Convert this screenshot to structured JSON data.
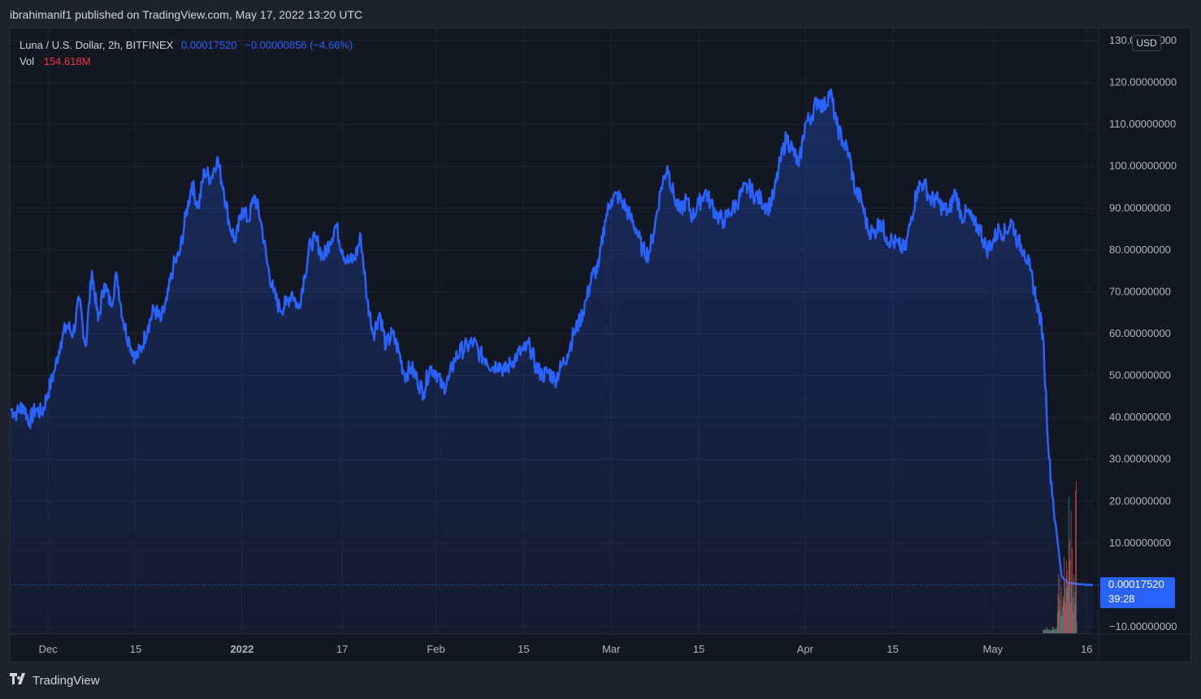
{
  "header": {
    "published_text": "ibrahimanif1 published on TradingView.com, May 17, 2022 13:20 UTC"
  },
  "legend": {
    "symbol": "Luna / U.S. Dollar, 2h, BITFINEX",
    "last": "0.00017520",
    "change": "−0.00000856 (−4.66%)",
    "vol_label": "Vol",
    "vol_value": "154.618M"
  },
  "currency_button": "USD",
  "price_tag": {
    "price": "0.00017520",
    "countdown": "39:28"
  },
  "footer": {
    "brand": "TradingView"
  },
  "colors": {
    "line": "#2962ff",
    "background": "#131722",
    "up": "#26a69a",
    "down": "#ef5350"
  },
  "chart_data": {
    "type": "area",
    "title": "Luna / U.S. Dollar, 2h, BITFINEX",
    "ylim": [
      -10,
      130
    ],
    "y_ticks": [
      {
        "v": 130,
        "label": "130.00000000"
      },
      {
        "v": 120,
        "label": "120.00000000"
      },
      {
        "v": 110,
        "label": "110.00000000"
      },
      {
        "v": 100,
        "label": "100.00000000"
      },
      {
        "v": 90,
        "label": "90.00000000"
      },
      {
        "v": 80,
        "label": "80.00000000"
      },
      {
        "v": 70,
        "label": "70.00000000"
      },
      {
        "v": 60,
        "label": "60.00000000"
      },
      {
        "v": 50,
        "label": "50.00000000"
      },
      {
        "v": 40,
        "label": "40.00000000"
      },
      {
        "v": 30,
        "label": "30.00000000"
      },
      {
        "v": 20,
        "label": "20.00000000"
      },
      {
        "v": 10,
        "label": "10.00000000"
      },
      {
        "v": -10,
        "label": "−10.00000000"
      }
    ],
    "x_start": "2021-11-25",
    "x_end": "2022-05-17",
    "x_ticks": [
      {
        "date": "2021-12-01",
        "label": "Dec",
        "bold": false
      },
      {
        "date": "2021-12-15",
        "label": "15",
        "bold": false
      },
      {
        "date": "2022-01-01",
        "label": "2022",
        "bold": true
      },
      {
        "date": "2022-01-17",
        "label": "17",
        "bold": false
      },
      {
        "date": "2022-02-01",
        "label": "Feb",
        "bold": false
      },
      {
        "date": "2022-02-15",
        "label": "15",
        "bold": false
      },
      {
        "date": "2022-03-01",
        "label": "Mar",
        "bold": false
      },
      {
        "date": "2022-03-15",
        "label": "15",
        "bold": false
      },
      {
        "date": "2022-04-01",
        "label": "Apr",
        "bold": false
      },
      {
        "date": "2022-04-15",
        "label": "15",
        "bold": false
      },
      {
        "date": "2022-05-01",
        "label": "May",
        "bold": false
      },
      {
        "date": "2022-05-16",
        "label": "16",
        "bold": false
      }
    ],
    "series": [
      {
        "name": "Luna / U.S. Dollar",
        "points": [
          [
            "2021-11-25",
            42
          ],
          [
            "2021-11-26",
            41
          ],
          [
            "2021-11-27",
            43
          ],
          [
            "2021-11-28",
            39
          ],
          [
            "2021-11-29",
            42
          ],
          [
            "2021-11-30",
            41
          ],
          [
            "2021-12-01",
            46
          ],
          [
            "2021-12-02",
            51
          ],
          [
            "2021-12-03",
            58
          ],
          [
            "2021-12-04",
            62
          ],
          [
            "2021-12-05",
            60
          ],
          [
            "2021-12-06",
            68
          ],
          [
            "2021-12-07",
            57
          ],
          [
            "2021-12-08",
            75
          ],
          [
            "2021-12-09",
            63
          ],
          [
            "2021-12-10",
            72
          ],
          [
            "2021-12-11",
            67
          ],
          [
            "2021-12-12",
            74
          ],
          [
            "2021-12-13",
            63
          ],
          [
            "2021-12-14",
            58
          ],
          [
            "2021-12-15",
            54
          ],
          [
            "2021-12-16",
            57
          ],
          [
            "2021-12-17",
            62
          ],
          [
            "2021-12-18",
            66
          ],
          [
            "2021-12-19",
            63
          ],
          [
            "2021-12-20",
            68
          ],
          [
            "2021-12-21",
            76
          ],
          [
            "2021-12-22",
            79
          ],
          [
            "2021-12-23",
            88
          ],
          [
            "2021-12-24",
            96
          ],
          [
            "2021-12-25",
            90
          ],
          [
            "2021-12-26",
            99
          ],
          [
            "2021-12-27",
            97
          ],
          [
            "2021-12-28",
            102
          ],
          [
            "2021-12-29",
            95
          ],
          [
            "2021-12-30",
            86
          ],
          [
            "2021-12-31",
            82
          ],
          [
            "2022-01-01",
            90
          ],
          [
            "2022-01-02",
            87
          ],
          [
            "2022-01-03",
            93
          ],
          [
            "2022-01-04",
            87
          ],
          [
            "2022-01-05",
            77
          ],
          [
            "2022-01-06",
            70
          ],
          [
            "2022-01-07",
            66
          ],
          [
            "2022-01-08",
            67
          ],
          [
            "2022-01-09",
            70
          ],
          [
            "2022-01-10",
            66
          ],
          [
            "2022-01-11",
            74
          ],
          [
            "2022-01-12",
            82
          ],
          [
            "2022-01-13",
            82
          ],
          [
            "2022-01-14",
            78
          ],
          [
            "2022-01-15",
            82
          ],
          [
            "2022-01-16",
            86
          ],
          [
            "2022-01-17",
            80
          ],
          [
            "2022-01-18",
            77
          ],
          [
            "2022-01-19",
            78
          ],
          [
            "2022-01-20",
            83
          ],
          [
            "2022-01-21",
            68
          ],
          [
            "2022-01-22",
            60
          ],
          [
            "2022-01-23",
            65
          ],
          [
            "2022-01-24",
            57
          ],
          [
            "2022-01-25",
            60
          ],
          [
            "2022-01-26",
            56
          ],
          [
            "2022-01-27",
            50
          ],
          [
            "2022-01-28",
            52
          ],
          [
            "2022-01-29",
            49
          ],
          [
            "2022-01-30",
            46
          ],
          [
            "2022-01-31",
            52
          ],
          [
            "2022-02-01",
            51
          ],
          [
            "2022-02-02",
            47
          ],
          [
            "2022-02-03",
            49
          ],
          [
            "2022-02-04",
            54
          ],
          [
            "2022-02-05",
            56
          ],
          [
            "2022-02-06",
            57
          ],
          [
            "2022-02-07",
            58
          ],
          [
            "2022-02-08",
            55
          ],
          [
            "2022-02-09",
            54
          ],
          [
            "2022-02-10",
            52
          ],
          [
            "2022-02-11",
            53
          ],
          [
            "2022-02-12",
            51
          ],
          [
            "2022-02-13",
            53
          ],
          [
            "2022-02-14",
            55
          ],
          [
            "2022-02-15",
            56
          ],
          [
            "2022-02-16",
            57
          ],
          [
            "2022-02-17",
            52
          ],
          [
            "2022-02-18",
            50
          ],
          [
            "2022-02-19",
            51
          ],
          [
            "2022-02-20",
            49
          ],
          [
            "2022-02-21",
            52
          ],
          [
            "2022-02-22",
            55
          ],
          [
            "2022-02-23",
            60
          ],
          [
            "2022-02-24",
            63
          ],
          [
            "2022-02-25",
            68
          ],
          [
            "2022-02-26",
            74
          ],
          [
            "2022-02-27",
            76
          ],
          [
            "2022-02-28",
            87
          ],
          [
            "2022-03-01",
            92
          ],
          [
            "2022-03-02",
            93
          ],
          [
            "2022-03-03",
            91
          ],
          [
            "2022-03-04",
            88
          ],
          [
            "2022-03-05",
            85
          ],
          [
            "2022-03-06",
            80
          ],
          [
            "2022-03-07",
            79
          ],
          [
            "2022-03-08",
            86
          ],
          [
            "2022-03-09",
            95
          ],
          [
            "2022-03-10",
            100
          ],
          [
            "2022-03-11",
            93
          ],
          [
            "2022-03-12",
            89
          ],
          [
            "2022-03-13",
            92
          ],
          [
            "2022-03-14",
            88
          ],
          [
            "2022-03-15",
            91
          ],
          [
            "2022-03-16",
            94
          ],
          [
            "2022-03-17",
            91
          ],
          [
            "2022-03-18",
            88
          ],
          [
            "2022-03-19",
            87
          ],
          [
            "2022-03-20",
            89
          ],
          [
            "2022-03-21",
            91
          ],
          [
            "2022-03-22",
            94
          ],
          [
            "2022-03-23",
            95
          ],
          [
            "2022-03-24",
            93
          ],
          [
            "2022-03-25",
            92
          ],
          [
            "2022-03-26",
            90
          ],
          [
            "2022-03-27",
            93
          ],
          [
            "2022-03-28",
            101
          ],
          [
            "2022-03-29",
            107
          ],
          [
            "2022-03-30",
            104
          ],
          [
            "2022-03-31",
            100
          ],
          [
            "2022-04-01",
            110
          ],
          [
            "2022-04-02",
            112
          ],
          [
            "2022-04-03",
            116
          ],
          [
            "2022-04-04",
            114
          ],
          [
            "2022-04-05",
            118
          ],
          [
            "2022-04-06",
            110
          ],
          [
            "2022-04-07",
            106
          ],
          [
            "2022-04-08",
            103
          ],
          [
            "2022-04-09",
            94
          ],
          [
            "2022-04-10",
            92
          ],
          [
            "2022-04-11",
            85
          ],
          [
            "2022-04-12",
            84
          ],
          [
            "2022-04-13",
            87
          ],
          [
            "2022-04-14",
            83
          ],
          [
            "2022-04-15",
            82
          ],
          [
            "2022-04-16",
            81
          ],
          [
            "2022-04-17",
            80
          ],
          [
            "2022-04-18",
            88
          ],
          [
            "2022-04-19",
            95
          ],
          [
            "2022-04-20",
            96
          ],
          [
            "2022-04-21",
            92
          ],
          [
            "2022-04-22",
            92
          ],
          [
            "2022-04-23",
            90
          ],
          [
            "2022-04-24",
            89
          ],
          [
            "2022-04-25",
            94
          ],
          [
            "2022-04-26",
            88
          ],
          [
            "2022-04-27",
            89
          ],
          [
            "2022-04-28",
            86
          ],
          [
            "2022-04-29",
            85
          ],
          [
            "2022-04-30",
            80
          ],
          [
            "2022-05-01",
            82
          ],
          [
            "2022-05-02",
            85
          ],
          [
            "2022-05-03",
            84
          ],
          [
            "2022-05-04",
            87
          ],
          [
            "2022-05-05",
            82
          ],
          [
            "2022-05-06",
            80
          ],
          [
            "2022-05-07",
            75
          ],
          [
            "2022-05-08",
            68
          ],
          [
            "2022-05-09",
            60
          ],
          [
            "2022-05-10",
            30
          ],
          [
            "2022-05-11",
            15
          ],
          [
            "2022-05-12",
            2
          ],
          [
            "2022-05-13",
            0.5
          ],
          [
            "2022-05-14",
            0.3
          ],
          [
            "2022-05-15",
            0.2
          ],
          [
            "2022-05-16",
            0.0002
          ],
          [
            "2022-05-17",
            0.0001752
          ]
        ]
      }
    ]
  }
}
